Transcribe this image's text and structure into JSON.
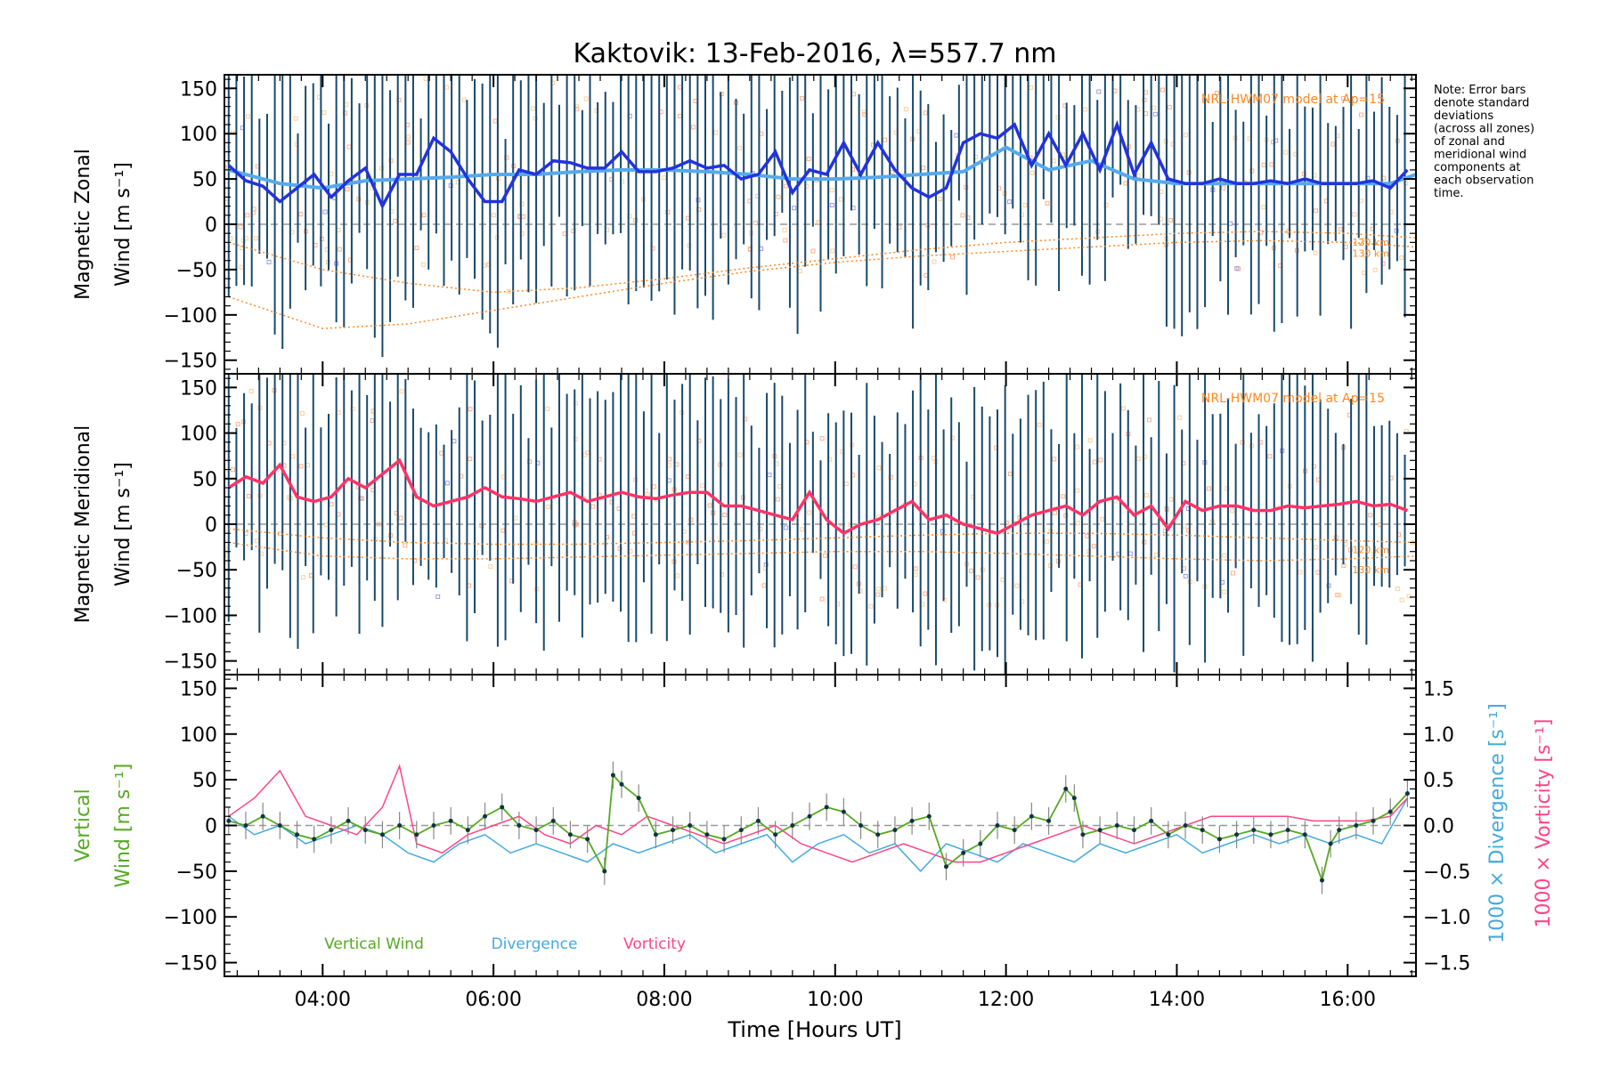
{
  "figure": {
    "title": "Kaktovik: 13-Feb-2016, λ=557.7 nm",
    "note_lines": [
      "Note: Error bars",
      "denote standard",
      "deviations",
      "(across all zones)",
      "of zonal and",
      "meridional wind",
      "components at",
      "each observation",
      "time."
    ],
    "xlabel": "Time [Hours UT]",
    "colors": {
      "zonal_mean": "#2233dd",
      "zonal_model": "#55aaee",
      "meridional_mean": "#ff3366",
      "errorbar": "#1a4a6a",
      "hwm": "#ff8822",
      "vertical": "#55aa22",
      "divergence": "#44aadd",
      "vorticity": "#ff4488",
      "zone_points": "#ffaa88"
    }
  },
  "chart_data": [
    {
      "type": "line",
      "panel": "zonal",
      "ylabel_lines": [
        "Magnetic Zonal",
        "Wind [m s⁻¹]"
      ],
      "ylim": [
        -165,
        165
      ],
      "xlim": [
        2.85,
        16.8
      ],
      "yticks": [
        150,
        100,
        50,
        0,
        -50,
        -100,
        -150
      ],
      "yticklabels": [
        "150",
        "100",
        "50",
        "0",
        "−50",
        "−100",
        "−150"
      ],
      "model_label": "NRL-HWM07 model at Ap=15",
      "model_altitudes": [
        "120 km",
        "130 km"
      ],
      "series": [
        {
          "name": "Zonal mean",
          "x": [
            2.9,
            3.1,
            3.3,
            3.5,
            3.7,
            3.9,
            4.1,
            4.3,
            4.5,
            4.7,
            4.9,
            5.1,
            5.3,
            5.5,
            5.7,
            5.9,
            6.1,
            6.3,
            6.5,
            6.7,
            6.9,
            7.1,
            7.3,
            7.5,
            7.7,
            7.9,
            8.1,
            8.3,
            8.5,
            8.7,
            8.9,
            9.1,
            9.3,
            9.5,
            9.7,
            9.9,
            10.1,
            10.3,
            10.5,
            10.7,
            10.9,
            11.1,
            11.3,
            11.5,
            11.7,
            11.9,
            12.1,
            12.3,
            12.5,
            12.7,
            12.9,
            13.1,
            13.3,
            13.5,
            13.7,
            13.9,
            14.1,
            14.3,
            14.5,
            14.7,
            14.9,
            15.1,
            15.3,
            15.5,
            15.7,
            15.9,
            16.1,
            16.3,
            16.5,
            16.7
          ],
          "values": [
            65,
            48,
            42,
            25,
            40,
            55,
            30,
            48,
            62,
            20,
            55,
            55,
            95,
            80,
            50,
            25,
            25,
            60,
            55,
            70,
            68,
            62,
            62,
            80,
            58,
            58,
            62,
            70,
            62,
            65,
            50,
            55,
            80,
            35,
            60,
            55,
            90,
            55,
            90,
            60,
            40,
            30,
            40,
            90,
            100,
            95,
            110,
            65,
            100,
            65,
            100,
            60,
            110,
            55,
            90,
            50,
            45,
            45,
            50,
            45,
            45,
            48,
            45,
            50,
            45,
            45,
            45,
            48,
            40,
            60
          ]
        },
        {
          "name": "Model",
          "x": [
            2.9,
            3.5,
            4.0,
            4.5,
            5.0,
            5.5,
            6.0,
            6.5,
            7.0,
            7.5,
            8.0,
            8.5,
            9.0,
            9.5,
            10.0,
            10.5,
            11.0,
            11.5,
            12.0,
            12.5,
            13.0,
            13.5,
            14.0,
            14.5,
            15.0,
            15.5,
            16.0,
            16.5,
            16.8
          ],
          "values": [
            60,
            45,
            40,
            48,
            50,
            52,
            55,
            55,
            58,
            60,
            60,
            58,
            55,
            50,
            50,
            52,
            55,
            58,
            85,
            60,
            70,
            50,
            45,
            45,
            45,
            45,
            45,
            45,
            55
          ]
        },
        {
          "name": "HWM 120 km",
          "x": [
            2.9,
            4.0,
            5.0,
            6.0,
            7.0,
            8.0,
            9.0,
            10.0,
            11.0,
            12.0,
            13.0,
            14.0,
            15.0,
            16.0,
            16.8
          ],
          "values": [
            -20,
            -50,
            -65,
            -75,
            -70,
            -60,
            -48,
            -38,
            -28,
            -20,
            -15,
            -10,
            -8,
            -10,
            -15
          ]
        },
        {
          "name": "HWM 130 km",
          "x": [
            2.9,
            4.0,
            5.0,
            6.0,
            7.0,
            8.0,
            9.0,
            10.0,
            11.0,
            12.0,
            13.0,
            14.0,
            15.0,
            16.0,
            16.8
          ],
          "values": [
            -80,
            -115,
            -110,
            -95,
            -80,
            -65,
            -52,
            -42,
            -35,
            -30,
            -25,
            -20,
            -18,
            -20,
            -25
          ]
        }
      ]
    },
    {
      "type": "line",
      "panel": "meridional",
      "ylabel_lines": [
        "Magnetic Meridional",
        "Wind [m s⁻¹]"
      ],
      "ylim": [
        -165,
        165
      ],
      "xlim": [
        2.85,
        16.8
      ],
      "yticks": [
        150,
        100,
        50,
        0,
        -50,
        -100,
        -150
      ],
      "yticklabels": [
        "150",
        "100",
        "50",
        "0",
        "−50",
        "−100",
        "−150"
      ],
      "model_label": "NRL-HWM07 model at Ap=15",
      "model_altitudes": [
        "120 km",
        "130 km"
      ],
      "series": [
        {
          "name": "Meridional mean",
          "x": [
            2.9,
            3.1,
            3.3,
            3.5,
            3.7,
            3.9,
            4.1,
            4.3,
            4.5,
            4.7,
            4.9,
            5.1,
            5.3,
            5.5,
            5.7,
            5.9,
            6.1,
            6.3,
            6.5,
            6.7,
            6.9,
            7.1,
            7.3,
            7.5,
            7.7,
            7.9,
            8.1,
            8.3,
            8.5,
            8.7,
            8.9,
            9.1,
            9.3,
            9.5,
            9.7,
            9.9,
            10.1,
            10.3,
            10.5,
            10.7,
            10.9,
            11.1,
            11.3,
            11.5,
            11.7,
            11.9,
            12.1,
            12.3,
            12.5,
            12.7,
            12.9,
            13.1,
            13.3,
            13.5,
            13.7,
            13.9,
            14.1,
            14.3,
            14.5,
            14.7,
            14.9,
            15.1,
            15.3,
            15.5,
            15.7,
            15.9,
            16.1,
            16.3,
            16.5,
            16.7
          ],
          "values": [
            40,
            52,
            45,
            65,
            30,
            25,
            30,
            50,
            40,
            55,
            70,
            30,
            20,
            25,
            30,
            40,
            30,
            28,
            25,
            30,
            35,
            25,
            30,
            35,
            30,
            28,
            32,
            35,
            35,
            20,
            20,
            15,
            10,
            5,
            35,
            5,
            -10,
            0,
            5,
            15,
            25,
            5,
            10,
            0,
            -5,
            -10,
            0,
            10,
            15,
            20,
            10,
            25,
            30,
            10,
            20,
            -5,
            25,
            15,
            20,
            20,
            15,
            15,
            20,
            18,
            20,
            22,
            25,
            20,
            22,
            15
          ]
        },
        {
          "name": "HWM 120 km",
          "x": [
            2.9,
            4.0,
            5.0,
            6.0,
            7.0,
            8.0,
            9.0,
            10.0,
            11.0,
            12.0,
            13.0,
            14.0,
            15.0,
            16.0,
            16.8
          ],
          "values": [
            -5,
            -15,
            -20,
            -22,
            -22,
            -20,
            -18,
            -15,
            -12,
            -10,
            -10,
            -12,
            -15,
            -18,
            -20
          ]
        },
        {
          "name": "HWM 130 km",
          "x": [
            2.9,
            4.0,
            5.0,
            6.0,
            7.0,
            8.0,
            9.0,
            10.0,
            11.0,
            12.0,
            13.0,
            14.0,
            15.0,
            16.0,
            16.8
          ],
          "values": [
            -20,
            -35,
            -38,
            -38,
            -36,
            -34,
            -32,
            -30,
            -30,
            -32,
            -35,
            -38,
            -40,
            -38,
            -35
          ]
        }
      ]
    },
    {
      "type": "line",
      "panel": "vertical",
      "ylabel_lines": [
        "Vertical",
        "Wind [m s⁻¹]"
      ],
      "ylim": [
        -165,
        165
      ],
      "xlim": [
        2.85,
        16.8
      ],
      "yticks": [
        150,
        100,
        50,
        0,
        -50,
        -100,
        -150
      ],
      "yticklabels": [
        "150",
        "100",
        "50",
        "0",
        "−50",
        "−100",
        "−150"
      ],
      "y2label_lines": [
        "1000 × Divergence [s⁻¹]",
        "1000 × Vorticity [s⁻¹]"
      ],
      "y2lim": [
        -1.65,
        1.65
      ],
      "y2ticks": [
        1.5,
        1.0,
        0.5,
        0.0,
        -0.5,
        -1.0,
        -1.5
      ],
      "y2ticklabels": [
        "1.5",
        "1.0",
        "0.5",
        "0.0",
        "−0.5",
        "−1.0",
        "−1.5"
      ],
      "xticks": [
        4,
        6,
        8,
        10,
        12,
        14,
        16
      ],
      "xticklabels": [
        "04:00",
        "06:00",
        "08:00",
        "10:00",
        "12:00",
        "14:00",
        "16:00"
      ],
      "legend": [
        "Vertical Wind",
        "Divergence",
        "Vorticity"
      ],
      "series": [
        {
          "name": "Vertical Wind",
          "x": [
            2.9,
            3.1,
            3.3,
            3.5,
            3.7,
            3.9,
            4.1,
            4.3,
            4.5,
            4.7,
            4.9,
            5.1,
            5.3,
            5.5,
            5.7,
            5.9,
            6.1,
            6.3,
            6.5,
            6.7,
            6.9,
            7.1,
            7.3,
            7.4,
            7.5,
            7.7,
            7.9,
            8.1,
            8.3,
            8.5,
            8.7,
            8.9,
            9.1,
            9.3,
            9.5,
            9.7,
            9.9,
            10.1,
            10.3,
            10.5,
            10.7,
            10.9,
            11.1,
            11.3,
            11.5,
            11.7,
            11.9,
            12.1,
            12.3,
            12.5,
            12.7,
            12.8,
            12.9,
            13.1,
            13.3,
            13.5,
            13.7,
            13.9,
            14.1,
            14.3,
            14.5,
            14.7,
            14.9,
            15.1,
            15.3,
            15.5,
            15.7,
            15.8,
            15.9,
            16.1,
            16.3,
            16.5,
            16.7
          ],
          "values": [
            5,
            0,
            10,
            0,
            -10,
            -15,
            -5,
            5,
            -5,
            -10,
            0,
            -10,
            0,
            5,
            -5,
            10,
            20,
            0,
            -5,
            5,
            -10,
            -15,
            -50,
            55,
            45,
            30,
            -10,
            -5,
            0,
            -10,
            -15,
            -5,
            5,
            -10,
            0,
            10,
            20,
            15,
            0,
            -10,
            -5,
            5,
            10,
            -45,
            -30,
            -20,
            0,
            -5,
            10,
            5,
            40,
            30,
            -10,
            -5,
            0,
            -5,
            5,
            -10,
            0,
            -5,
            -15,
            -10,
            -5,
            -10,
            -5,
            -10,
            -60,
            -20,
            -5,
            0,
            5,
            15,
            35
          ]
        },
        {
          "name": "Divergence",
          "x": [
            2.9,
            3.2,
            3.5,
            3.8,
            4.1,
            4.4,
            4.7,
            5.0,
            5.3,
            5.6,
            5.9,
            6.2,
            6.5,
            6.8,
            7.1,
            7.4,
            7.7,
            8.0,
            8.3,
            8.6,
            8.9,
            9.2,
            9.5,
            9.8,
            10.1,
            10.4,
            10.7,
            11.0,
            11.3,
            11.6,
            11.9,
            12.2,
            12.5,
            12.8,
            13.1,
            13.4,
            13.7,
            14.0,
            14.3,
            14.6,
            14.9,
            15.2,
            15.5,
            15.8,
            16.1,
            16.4,
            16.7
          ],
          "values": [
            0.1,
            -0.1,
            0.0,
            -0.2,
            -0.1,
            0.0,
            -0.1,
            -0.3,
            -0.4,
            -0.2,
            -0.1,
            -0.3,
            -0.2,
            -0.3,
            -0.4,
            -0.2,
            -0.3,
            -0.2,
            -0.1,
            -0.3,
            -0.2,
            -0.1,
            -0.4,
            -0.2,
            -0.1,
            -0.3,
            -0.2,
            -0.5,
            -0.2,
            -0.3,
            -0.4,
            -0.2,
            -0.3,
            -0.4,
            -0.2,
            -0.3,
            -0.2,
            -0.1,
            -0.3,
            -0.2,
            -0.1,
            -0.2,
            -0.1,
            -0.2,
            -0.1,
            -0.2,
            0.3
          ]
        },
        {
          "name": "Vorticity",
          "x": [
            2.9,
            3.2,
            3.5,
            3.8,
            4.1,
            4.4,
            4.7,
            4.9,
            5.1,
            5.4,
            5.7,
            6.0,
            6.3,
            6.6,
            6.9,
            7.2,
            7.5,
            7.8,
            8.1,
            8.4,
            8.7,
            9.0,
            9.3,
            9.6,
            9.9,
            10.2,
            10.5,
            10.8,
            11.1,
            11.4,
            11.7,
            12.0,
            12.3,
            12.6,
            12.9,
            13.2,
            13.5,
            13.8,
            14.1,
            14.4,
            14.7,
            15.0,
            15.3,
            15.6,
            15.9,
            16.2,
            16.5,
            16.7
          ],
          "values": [
            0.1,
            0.3,
            0.6,
            0.1,
            0.0,
            -0.1,
            0.2,
            0.65,
            -0.2,
            -0.3,
            -0.1,
            0.0,
            0.1,
            -0.1,
            -0.2,
            0.0,
            -0.1,
            0.1,
            0.0,
            -0.1,
            -0.2,
            -0.1,
            0.0,
            -0.2,
            -0.3,
            -0.4,
            -0.3,
            -0.2,
            -0.3,
            -0.4,
            -0.4,
            -0.3,
            -0.2,
            -0.1,
            0.0,
            -0.1,
            -0.2,
            -0.1,
            0.0,
            0.1,
            0.1,
            0.1,
            0.1,
            0.05,
            0.05,
            0.05,
            0.1,
            0.3
          ]
        }
      ]
    }
  ]
}
